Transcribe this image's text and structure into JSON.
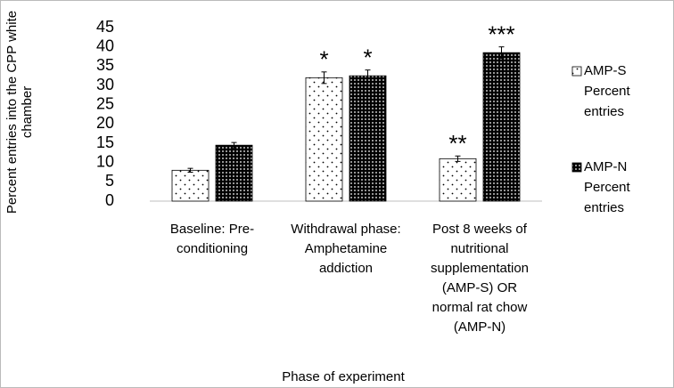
{
  "chart_data": {
    "type": "bar",
    "categories": [
      "Baseline: Pre-\nconditioning",
      "Withdrawal phase:\nAmphetamine\naddiction",
      "Post 8 weeks of\nnutritional\nsupplementation\n(AMP-S) OR\nnormal rat chow\n(AMP-N)"
    ],
    "series": [
      {
        "name": "AMP-S Percent entries",
        "color": "#ffffff",
        "pattern": "sparse-dots",
        "values": [
          8,
          32,
          11
        ],
        "errors": [
          0.5,
          1.5,
          0.7
        ],
        "annotations": [
          null,
          "*",
          "**"
        ]
      },
      {
        "name": "AMP-N Percent entries",
        "color": "#000000",
        "pattern": "dense-dots",
        "values": [
          14.5,
          32.5,
          38.5
        ],
        "errors": [
          0.7,
          1.5,
          1.5
        ],
        "annotations": [
          null,
          "*",
          "***"
        ]
      }
    ],
    "ylim": [
      0,
      45
    ],
    "yticks": [
      0,
      5,
      10,
      15,
      20,
      25,
      30,
      35,
      40,
      45
    ],
    "ylabel": "Percent entries into the CPP white\nchamber",
    "xlabel": "Phase of experiment",
    "legend": "right",
    "grid": false
  }
}
